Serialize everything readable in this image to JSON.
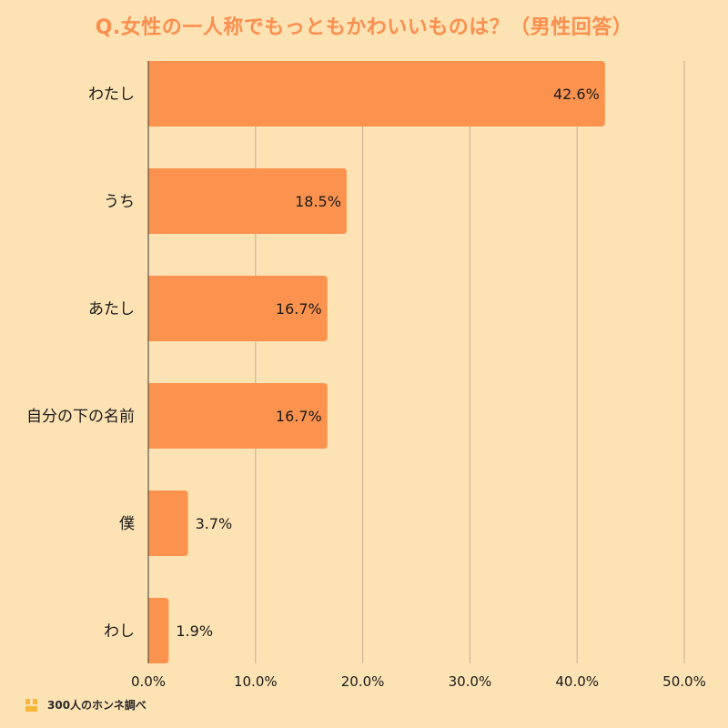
{
  "title": "Q.女性の一人称でもっともかわいいものは？（男性回答）",
  "footer": {
    "brand": "300人のホンネ調べ"
  },
  "colors": {
    "background": "#fde2b4",
    "bar": "#fb934f",
    "title": "#fb8f4f",
    "grid": "#c4ad94"
  },
  "chart_data": {
    "type": "bar",
    "orientation": "horizontal",
    "title": "Q.女性の一人称でもっともかわいいものは？（男性回答）",
    "categories": [
      "わたし",
      "うち",
      "あたし",
      "自分の下の名前",
      "僕",
      "わし"
    ],
    "values": [
      42.6,
      18.5,
      16.7,
      16.7,
      3.7,
      1.9
    ],
    "value_labels": [
      "42.6%",
      "18.5%",
      "16.7%",
      "16.7%",
      "3.7%",
      "1.9%"
    ],
    "x_ticks": [
      "0.0%",
      "10.0%",
      "20.0%",
      "30.0%",
      "40.0%",
      "50.0%"
    ],
    "xlim": [
      0,
      50
    ],
    "grid": true,
    "unit": "%"
  }
}
